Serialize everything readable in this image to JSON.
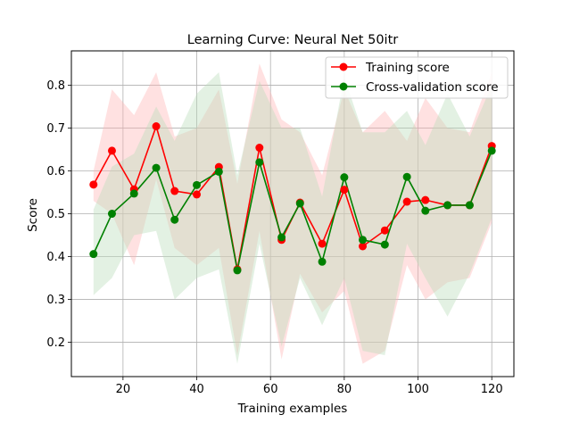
{
  "chart_data": {
    "type": "line",
    "title": "Learning Curve: Neural Net 50itr",
    "xlabel": "Training examples",
    "ylabel": "Score",
    "xlim": [
      6,
      126
    ],
    "ylim": [
      0.12,
      0.88
    ],
    "xticks": [
      20,
      40,
      60,
      80,
      100,
      120
    ],
    "yticks": [
      0.2,
      0.3,
      0.4,
      0.5,
      0.6,
      0.7,
      0.8
    ],
    "grid": true,
    "legend_position": "upper-right",
    "x": [
      12,
      17,
      23,
      29,
      34,
      40,
      46,
      51,
      57,
      63,
      68,
      74,
      80,
      85,
      91,
      97,
      102,
      108,
      114,
      120
    ],
    "series": [
      {
        "name": "Training score",
        "color": "#ff0000",
        "band_color": "#ffb3b3",
        "values": [
          0.568,
          0.647,
          0.557,
          0.704,
          0.553,
          0.545,
          0.609,
          0.37,
          0.654,
          0.439,
          0.526,
          0.43,
          0.556,
          0.424,
          0.461,
          0.528,
          0.532,
          0.52,
          0.52,
          0.658
        ],
        "band_upper": [
          0.6,
          0.79,
          0.73,
          0.83,
          0.68,
          0.7,
          0.79,
          0.57,
          0.85,
          0.72,
          0.69,
          0.59,
          0.79,
          0.69,
          0.74,
          0.67,
          0.77,
          0.7,
          0.69,
          0.83
        ],
        "band_lower": [
          0.53,
          0.5,
          0.38,
          0.58,
          0.42,
          0.38,
          0.42,
          0.17,
          0.46,
          0.16,
          0.36,
          0.27,
          0.32,
          0.15,
          0.18,
          0.38,
          0.3,
          0.34,
          0.35,
          0.48
        ]
      },
      {
        "name": "Cross-validation score",
        "color": "#008000",
        "band_color": "#b8dcb8",
        "values": [
          0.406,
          0.5,
          0.547,
          0.607,
          0.486,
          0.567,
          0.598,
          0.368,
          0.62,
          0.445,
          0.524,
          0.388,
          0.585,
          0.439,
          0.428,
          0.586,
          0.507,
          0.52,
          0.52,
          0.647
        ],
        "band_upper": [
          0.51,
          0.61,
          0.64,
          0.75,
          0.67,
          0.78,
          0.83,
          0.59,
          0.81,
          0.7,
          0.7,
          0.54,
          0.82,
          0.69,
          0.69,
          0.74,
          0.66,
          0.78,
          0.68,
          0.8
        ],
        "band_lower": [
          0.31,
          0.35,
          0.45,
          0.46,
          0.3,
          0.35,
          0.37,
          0.15,
          0.43,
          0.19,
          0.35,
          0.24,
          0.35,
          0.18,
          0.17,
          0.43,
          0.35,
          0.26,
          0.36,
          0.49
        ]
      }
    ]
  }
}
